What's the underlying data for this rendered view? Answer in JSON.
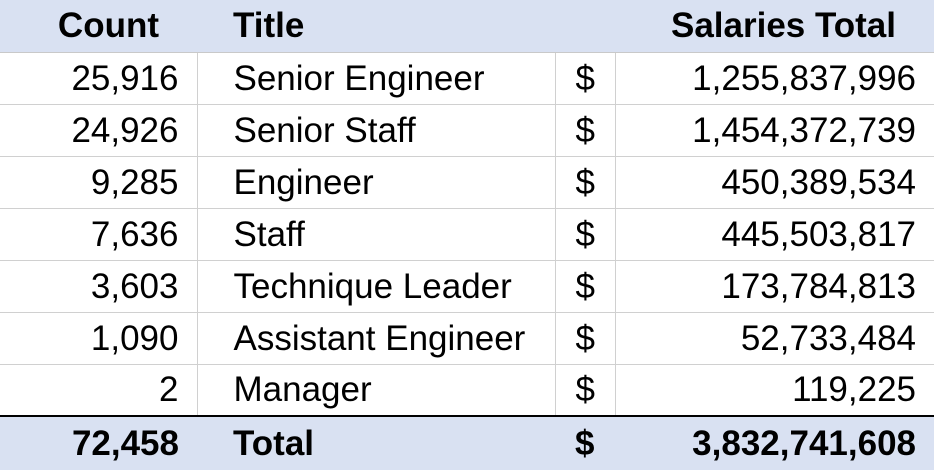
{
  "headers": {
    "count": "Count",
    "title": "Title",
    "dollar": "",
    "salaries_total": "Salaries Total"
  },
  "rows": [
    {
      "count": "25,916",
      "title": "Senior Engineer",
      "currency": "$",
      "salaries_total": "1,255,837,996"
    },
    {
      "count": "24,926",
      "title": "Senior Staff",
      "currency": "$",
      "salaries_total": "1,454,372,739"
    },
    {
      "count": "9,285",
      "title": "Engineer",
      "currency": "$",
      "salaries_total": "450,389,534"
    },
    {
      "count": "7,636",
      "title": "Staff",
      "currency": "$",
      "salaries_total": "445,503,817"
    },
    {
      "count": "3,603",
      "title": "Technique Leader",
      "currency": "$",
      "salaries_total": "173,784,813"
    },
    {
      "count": "1,090",
      "title": "Assistant Engineer",
      "currency": "$",
      "salaries_total": "52,733,484"
    },
    {
      "count": "2",
      "title": "Manager",
      "currency": "$",
      "salaries_total": "119,225"
    }
  ],
  "total": {
    "count": "72,458",
    "title": "Total",
    "currency": "$",
    "salaries_total": "3,832,741,608"
  },
  "colors": {
    "header_fill": "#d9e1f2",
    "grid": "#d0d0d0",
    "total_rule": "#000000"
  }
}
